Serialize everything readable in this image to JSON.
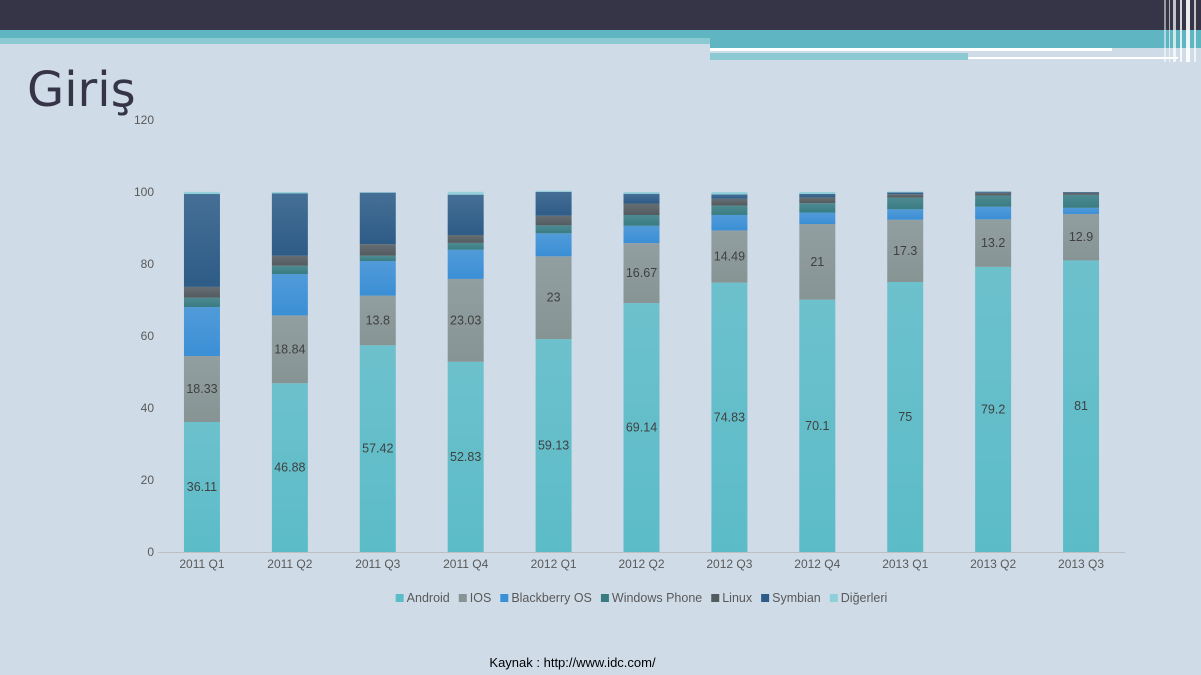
{
  "slide": {
    "title": "Giriş",
    "source": "Kaynak : http://www.idc.com/"
  },
  "colors": {
    "background": "#cfdce8",
    "title": "#363447"
  },
  "chart_data": {
    "type": "bar",
    "stacked": true,
    "title": "",
    "xlabel": "",
    "ylabel": "",
    "ylim": [
      0,
      120
    ],
    "yticks": [
      0,
      20,
      40,
      60,
      80,
      100,
      120
    ],
    "grid": false,
    "legend": "bottom",
    "categories": [
      "2011 Q1",
      "2011 Q2",
      "2011 Q3",
      "2011 Q4",
      "2012 Q1",
      "2012 Q2",
      "2012 Q3",
      "2012 Q4",
      "2013 Q1",
      "2013 Q2",
      "2013 Q3"
    ],
    "series": [
      {
        "name": "Android",
        "color": "#5bbcc8",
        "labeled": true,
        "values": [
          36.11,
          46.88,
          57.42,
          52.83,
          59.13,
          69.14,
          74.83,
          70.1,
          75,
          79.2,
          81
        ]
      },
      {
        "name": "IOS",
        "color": "#879494",
        "labeled": true,
        "values": [
          18.33,
          18.84,
          13.8,
          23.03,
          23,
          16.67,
          14.49,
          21,
          17.3,
          13.2,
          12.9
        ]
      },
      {
        "name": "Blackberry OS",
        "color": "#3b8fd6",
        "labeled": false,
        "values": [
          13.6,
          11.5,
          9.6,
          8.1,
          6.4,
          4.8,
          4.3,
          3.2,
          2.9,
          3.5,
          1.7
        ]
      },
      {
        "name": "Windows Phone",
        "color": "#387c82",
        "labeled": false,
        "values": [
          2.6,
          2.3,
          1.5,
          1.9,
          2.2,
          3.0,
          2.6,
          2.6,
          3.2,
          3.1,
          3.6
        ]
      },
      {
        "name": "Linux",
        "color": "#535b5f",
        "labeled": false,
        "values": [
          3.0,
          2.8,
          3.2,
          2.2,
          2.7,
          3.2,
          1.9,
          1.6,
          1.0,
          0.8,
          0.6
        ]
      },
      {
        "name": "Symbian",
        "color": "#2d5c87",
        "labeled": false,
        "values": [
          25.8,
          17.3,
          14.3,
          11.2,
          6.6,
          2.7,
          1.2,
          1.0,
          0.5,
          0.3,
          0.2
        ]
      },
      {
        "name": "Diğerleri",
        "color": "#8ed0da",
        "labeled": false,
        "values": [
          0.6,
          0.4,
          0.2,
          0.8,
          0.3,
          0.5,
          0.7,
          0.5,
          0.2,
          0.1,
          0
        ]
      }
    ]
  }
}
